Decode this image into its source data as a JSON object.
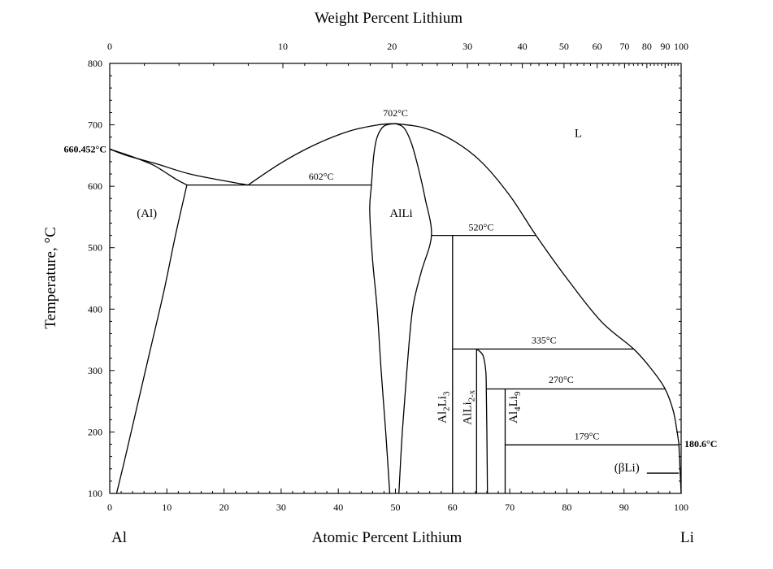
{
  "chart_data": {
    "type": "line",
    "title": "",
    "xlabel": "Atomic Percent Lithium",
    "x2label": "Weight Percent Lithium",
    "ylabel": "Temperature, °C",
    "xlim": [
      0,
      100
    ],
    "ylim": [
      100,
      800
    ],
    "grid": false,
    "legend": "none",
    "x_ticks": [
      "0",
      "10",
      "20",
      "30",
      "40",
      "50",
      "60",
      "70",
      "80",
      "90",
      "100"
    ],
    "y_ticks": [
      "100",
      "200",
      "300",
      "400",
      "500",
      "600",
      "700",
      "800"
    ],
    "top_ticks": [
      {
        "label": "0",
        "at": 0
      },
      {
        "label": "10",
        "at": 30.3
      },
      {
        "label": "20",
        "at": 49.4
      },
      {
        "label": "30",
        "at": 62.6
      },
      {
        "label": "40",
        "at": 72.2
      },
      {
        "label": "50",
        "at": 79.5
      },
      {
        "label": "60",
        "at": 85.3
      },
      {
        "label": "70",
        "at": 90.1
      },
      {
        "label": "80",
        "at": 94.0
      },
      {
        "label": "90",
        "at": 97.2
      },
      {
        "label": "100",
        "at": 100
      }
    ],
    "end_labels": {
      "left": "Al",
      "right": "Li"
    },
    "curves": [
      {
        "name": "liquidus-al",
        "points": [
          [
            0,
            660.452
          ],
          [
            3,
            650
          ],
          [
            8,
            637
          ],
          [
            14,
            620
          ],
          [
            20,
            609
          ],
          [
            24.2,
            602
          ]
        ]
      },
      {
        "name": "solidus-al",
        "points": [
          [
            0,
            660.452
          ],
          [
            4,
            648
          ],
          [
            7.5,
            635
          ],
          [
            9.5,
            624
          ],
          [
            11.5,
            612
          ],
          [
            13.5,
            602
          ]
        ]
      },
      {
        "name": "solvus-al",
        "points": [
          [
            13.5,
            602
          ],
          [
            11.5,
            520
          ],
          [
            9.5,
            430
          ],
          [
            7,
            330
          ],
          [
            4.5,
            230
          ],
          [
            2.5,
            150
          ],
          [
            1.2,
            100
          ]
        ]
      },
      {
        "name": "liquidus-alli-left",
        "points": [
          [
            24.2,
            602
          ],
          [
            30,
            638
          ],
          [
            36,
            668
          ],
          [
            42,
            690
          ],
          [
            47,
            700
          ],
          [
            50,
            702
          ]
        ]
      },
      {
        "name": "liquidus-right",
        "points": [
          [
            50,
            702
          ],
          [
            55,
            695
          ],
          [
            60,
            675
          ],
          [
            65,
            640
          ],
          [
            70,
            585
          ],
          [
            74.6,
            520
          ],
          [
            80,
            450
          ],
          [
            86,
            380
          ],
          [
            91.7,
            335
          ],
          [
            95,
            300
          ],
          [
            97.2,
            270
          ],
          [
            98.6,
            235
          ],
          [
            99.3,
            200
          ],
          [
            99.6,
            180.6
          ]
        ]
      },
      {
        "name": "alli-left",
        "points": [
          [
            50,
            702
          ],
          [
            48,
            698
          ],
          [
            46.8,
            680
          ],
          [
            46.2,
            650
          ],
          [
            45.8,
            602
          ],
          [
            45.5,
            560
          ],
          [
            46,
            480
          ],
          [
            46.8,
            400
          ],
          [
            47.5,
            300
          ],
          [
            48.3,
            200
          ],
          [
            48.8,
            130
          ],
          [
            49,
            100
          ]
        ]
      },
      {
        "name": "alli-right",
        "points": [
          [
            50,
            702
          ],
          [
            51.5,
            695
          ],
          [
            52.8,
            670
          ],
          [
            54,
            630
          ],
          [
            55.2,
            580
          ],
          [
            56.3,
            520
          ],
          [
            54.5,
            460
          ],
          [
            53,
            400
          ],
          [
            52,
            300
          ],
          [
            51.2,
            200
          ],
          [
            50.6,
            100
          ]
        ]
      },
      {
        "name": "alli2x-left",
        "points": [
          [
            64.2,
            335
          ],
          [
            64.2,
            100
          ]
        ]
      },
      {
        "name": "alli2x-right",
        "points": [
          [
            64.2,
            335
          ],
          [
            65.3,
            325
          ],
          [
            65.8,
            300
          ],
          [
            65.9,
            270
          ],
          [
            66,
            200
          ],
          [
            66.1,
            100
          ]
        ]
      },
      {
        "name": "al2li3",
        "points": [
          [
            60,
            520
          ],
          [
            60,
            100
          ]
        ]
      },
      {
        "name": "al4li9",
        "points": [
          [
            69.2,
            270
          ],
          [
            69.2,
            100
          ]
        ]
      },
      {
        "name": "beta-li-edge",
        "points": [
          [
            99.6,
            180.6
          ],
          [
            99.8,
            140
          ],
          [
            100,
            100
          ]
        ]
      },
      {
        "name": "eutectic-602",
        "points": [
          [
            13.5,
            602
          ],
          [
            45.8,
            602
          ]
        ]
      },
      {
        "name": "peritectic-520",
        "points": [
          [
            56.3,
            520
          ],
          [
            74.6,
            520
          ]
        ]
      },
      {
        "name": "peritectic-335",
        "points": [
          [
            60,
            335
          ],
          [
            91.7,
            335
          ]
        ]
      },
      {
        "name": "peritectic-270",
        "points": [
          [
            66,
            270
          ],
          [
            97.2,
            270
          ]
        ]
      },
      {
        "name": "eutectic-179",
        "points": [
          [
            69.2,
            179
          ],
          [
            99.6,
            179
          ]
        ]
      },
      {
        "name": "beta-li-leader",
        "points": [
          [
            94,
            133
          ],
          [
            99.6,
            133
          ]
        ]
      }
    ],
    "annotations": [
      {
        "text": "702°C",
        "x": 50,
        "y": 714
      },
      {
        "text": "602°C",
        "x": 37,
        "y": 611
      },
      {
        "text": "520°C",
        "x": 65,
        "y": 528
      },
      {
        "text": "335°C",
        "x": 76,
        "y": 344
      },
      {
        "text": "270°C",
        "x": 79,
        "y": 280
      },
      {
        "text": "179°C",
        "x": 83.5,
        "y": 188
      }
    ],
    "bold_labels": [
      {
        "text": "660.452°C",
        "x": 0,
        "y": 660.452,
        "side": "left"
      },
      {
        "text": "180.6°C",
        "x": 100,
        "y": 180.6,
        "side": "right"
      }
    ],
    "regions": [
      {
        "text": "(Al)",
        "x": 6.5,
        "y": 550
      },
      {
        "text": "AlLi",
        "x": 51,
        "y": 550
      },
      {
        "text": "L",
        "x": 82,
        "y": 680
      },
      {
        "text": "(βLi)",
        "x": 90.5,
        "y": 136
      },
      {
        "text": "Al2Li3",
        "x": 58.8,
        "y": 240,
        "vertical": true
      },
      {
        "text": "AlLi2-x",
        "x": 63.2,
        "y": 240,
        "vertical": true
      },
      {
        "text": "Al4Li9",
        "x": 71.3,
        "y": 240,
        "vertical": true
      }
    ]
  }
}
